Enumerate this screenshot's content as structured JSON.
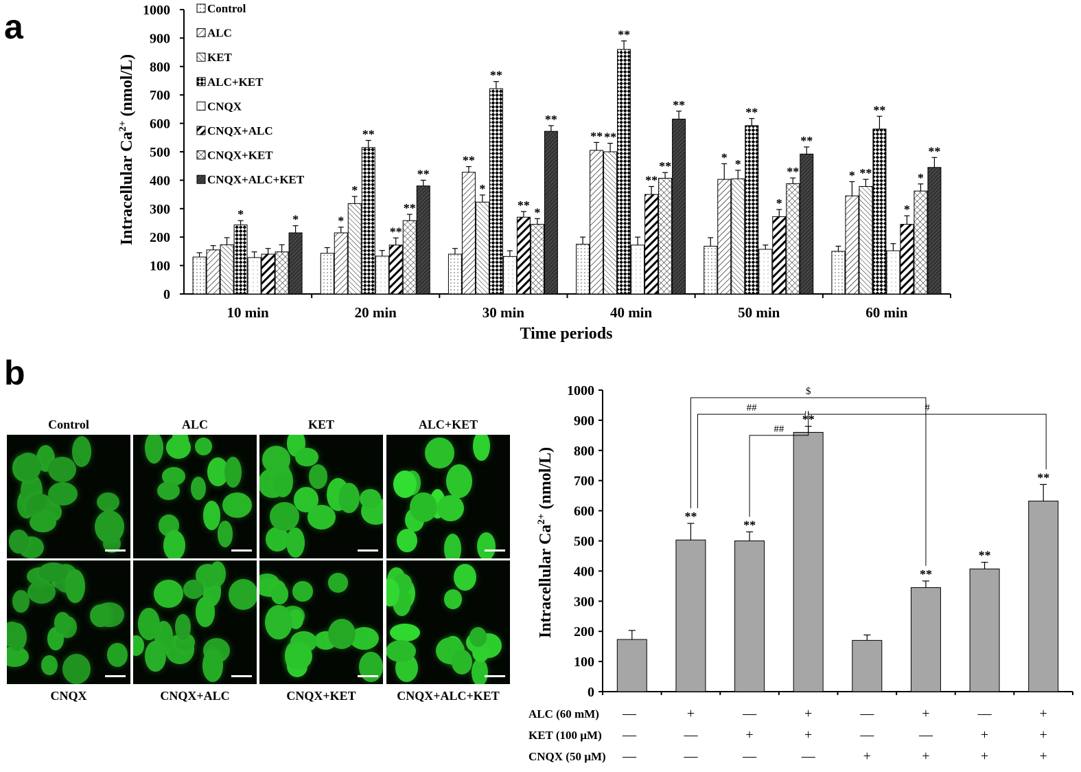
{
  "panel_labels": {
    "a": "a",
    "b": "b"
  },
  "colors": {
    "bar_gray": "#a6a6a6",
    "axis": "#000000",
    "cell_bright": "#3ee03e",
    "cell_dim": "#1c8a1c"
  },
  "chart_data": [
    {
      "type": "bar",
      "title": "",
      "ylabel_prefix": "Intracellular  Ca",
      "ylabel_sup": "2+",
      "ylabel_suffix": " (nmol/L)",
      "xlabel": "Time  periods",
      "categories": [
        "10 min",
        "20 min",
        "30 min",
        "40 min",
        "50 min",
        "60 min"
      ],
      "ylim": [
        0,
        1000
      ],
      "yticks": [
        0,
        100,
        200,
        300,
        400,
        500,
        600,
        700,
        800,
        900,
        1000
      ],
      "legend_position": "top-left",
      "series": [
        {
          "name": "Control",
          "pattern": "dots",
          "values": [
            130,
            143,
            140,
            175,
            168,
            150
          ],
          "errors": [
            15,
            20,
            20,
            25,
            30,
            18
          ],
          "sig": [
            "",
            "",
            "",
            "",
            "",
            ""
          ]
        },
        {
          "name": "ALC",
          "pattern": "diag",
          "values": [
            155,
            215,
            428,
            505,
            403,
            345
          ],
          "errors": [
            15,
            20,
            20,
            28,
            55,
            50
          ],
          "sig": [
            "",
            "*",
            "**",
            "**",
            "*",
            "*"
          ]
        },
        {
          "name": "KET",
          "pattern": "hlines",
          "values": [
            173,
            318,
            323,
            500,
            405,
            378
          ],
          "errors": [
            25,
            25,
            25,
            30,
            30,
            25
          ],
          "sig": [
            "",
            "*",
            "*",
            "**",
            "*",
            "**"
          ]
        },
        {
          "name": "ALC+KET",
          "pattern": "checker",
          "values": [
            243,
            515,
            722,
            860,
            592,
            580
          ],
          "errors": [
            15,
            25,
            25,
            30,
            25,
            45
          ],
          "sig": [
            "*",
            "**",
            "**",
            "**",
            "**",
            "**"
          ]
        },
        {
          "name": "CNQX",
          "pattern": "sparse",
          "values": [
            128,
            133,
            132,
            172,
            157,
            152
          ],
          "errors": [
            20,
            20,
            20,
            28,
            15,
            25
          ],
          "sig": [
            "",
            "",
            "",
            "",
            "",
            ""
          ]
        },
        {
          "name": "CNQX+ALC",
          "pattern": "thickdiag",
          "values": [
            140,
            172,
            270,
            350,
            272,
            245
          ],
          "errors": [
            20,
            25,
            20,
            28,
            25,
            30
          ],
          "sig": [
            "",
            "**",
            "**",
            "**",
            "*",
            "*"
          ]
        },
        {
          "name": "CNQX+KET",
          "pattern": "cross",
          "values": [
            148,
            258,
            245,
            407,
            388,
            362
          ],
          "errors": [
            25,
            22,
            20,
            20,
            20,
            25
          ],
          "sig": [
            "",
            "**",
            "*",
            "**",
            "**",
            "*"
          ]
        },
        {
          "name": "CNQX+ALC+KET",
          "pattern": "dark",
          "values": [
            215,
            380,
            572,
            615,
            492,
            445
          ],
          "errors": [
            25,
            20,
            20,
            28,
            25,
            35
          ],
          "sig": [
            "*",
            "**",
            "**",
            "**",
            "**",
            "**"
          ]
        }
      ]
    },
    {
      "type": "bar",
      "title": "",
      "ylabel_prefix": "Intracellular  Ca",
      "ylabel_sup": "2+",
      "ylabel_suffix": " (nmol/L)",
      "ylim": [
        0,
        1000
      ],
      "yticks": [
        0,
        100,
        200,
        300,
        400,
        500,
        600,
        700,
        800,
        900,
        1000
      ],
      "values": [
        173,
        503,
        500,
        860,
        170,
        345,
        407,
        632
      ],
      "errors": [
        30,
        55,
        30,
        20,
        18,
        22,
        22,
        55
      ],
      "sig": [
        "",
        "**",
        "**",
        "**",
        "",
        "**",
        "**",
        "**"
      ],
      "treatment_rows": [
        {
          "label": "ALC (60 mM)",
          "signs": [
            "—",
            "+",
            "—",
            "+",
            "—",
            "+",
            "—",
            "+"
          ]
        },
        {
          "label": "KET (100 µM)",
          "signs": [
            "—",
            "—",
            "+",
            "+",
            "—",
            "—",
            "+",
            "+"
          ]
        },
        {
          "label": "CNQX (50 µM)",
          "signs": [
            "—",
            "—",
            "—",
            "—",
            "+",
            "+",
            "+",
            "+"
          ]
        }
      ],
      "comparisons": [
        {
          "from": 1,
          "to": 5,
          "label": "$",
          "level": 975
        },
        {
          "from": 1,
          "to": 3,
          "label": "##",
          "level": 920
        },
        {
          "from": 2,
          "to": 3,
          "label": "##",
          "level": 850
        },
        {
          "from": 3,
          "to": 7,
          "label": "#",
          "level": 920
        }
      ]
    }
  ],
  "micrographs": {
    "top": [
      "Control",
      "ALC",
      "KET",
      "ALC+KET"
    ],
    "bottom": [
      "CNQX",
      "CNQX+ALC",
      "CNQX+KET",
      "CNQX+ALC+KET"
    ]
  }
}
